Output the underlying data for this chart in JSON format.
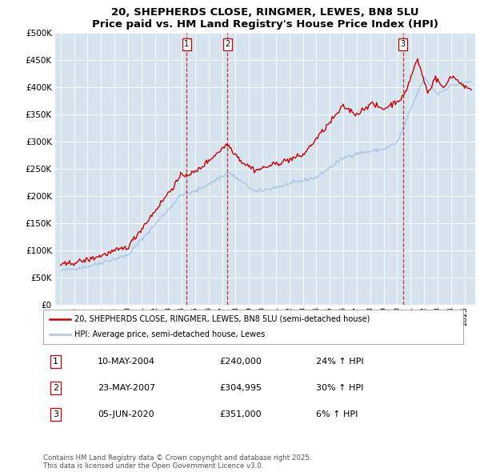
{
  "title": "20, SHEPHERDS CLOSE, RINGMER, LEWES, BN8 5LU",
  "subtitle": "Price paid vs. HM Land Registry's House Price Index (HPI)",
  "ytick_vals": [
    0,
    50000,
    100000,
    150000,
    200000,
    250000,
    300000,
    350000,
    400000,
    450000,
    500000
  ],
  "xlim_left": 1994.6,
  "xlim_right": 2025.8,
  "ylim": [
    0,
    500000
  ],
  "plot_background": "#d6e4f0",
  "sale_color": "#cc0000",
  "hpi_color": "#a8c8e8",
  "legend_sale_label": "20, SHEPHERDS CLOSE, RINGMER, LEWES, BN8 5LU (semi-detached house)",
  "legend_hpi_label": "HPI: Average price, semi-detached house, Lewes",
  "transaction_dates": [
    2004.36,
    2007.39,
    2020.44
  ],
  "transaction_labels": [
    "1",
    "2",
    "3"
  ],
  "footer_text": "Contains HM Land Registry data © Crown copyright and database right 2025.\nThis data is licensed under the Open Government Licence v3.0.",
  "xtick_years": [
    1995,
    1996,
    1997,
    1998,
    1999,
    2000,
    2001,
    2002,
    2003,
    2004,
    2005,
    2006,
    2007,
    2008,
    2009,
    2010,
    2011,
    2012,
    2013,
    2014,
    2015,
    2016,
    2017,
    2018,
    2019,
    2020,
    2021,
    2022,
    2023,
    2024,
    2025
  ]
}
